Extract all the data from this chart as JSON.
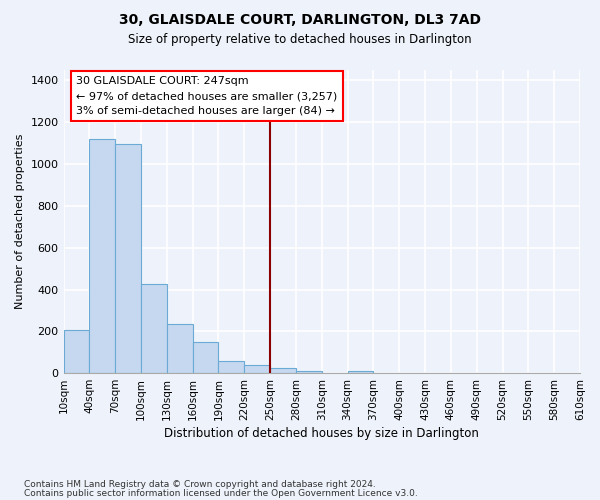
{
  "title": "30, GLAISDALE COURT, DARLINGTON, DL3 7AD",
  "subtitle": "Size of property relative to detached houses in Darlington",
  "xlabel": "Distribution of detached houses by size in Darlington",
  "ylabel": "Number of detached properties",
  "bar_color": "#c5d8f0",
  "bar_edge_color": "#6aaad4",
  "background_color": "#eef2fa",
  "categories": [
    "10sqm",
    "40sqm",
    "70sqm",
    "100sqm",
    "130sqm",
    "160sqm",
    "190sqm",
    "220sqm",
    "250sqm",
    "280sqm",
    "310sqm",
    "340sqm",
    "370sqm",
    "400sqm",
    "430sqm",
    "460sqm",
    "490sqm",
    "520sqm",
    "550sqm",
    "580sqm",
    "610sqm"
  ],
  "bar_heights": [
    205,
    1120,
    1095,
    425,
    235,
    148,
    60,
    40,
    25,
    10,
    0,
    10,
    0,
    0,
    0,
    0,
    0,
    0,
    0,
    0
  ],
  "ylim": [
    0,
    1450
  ],
  "yticks": [
    0,
    200,
    400,
    600,
    800,
    1000,
    1200,
    1400
  ],
  "annotation_title": "30 GLAISDALE COURT: 247sqm",
  "annotation_line1": "← 97% of detached houses are smaller (3,257)",
  "annotation_line2": "3% of semi-detached houses are larger (84) →",
  "footnote1": "Contains HM Land Registry data © Crown copyright and database right 2024.",
  "footnote2": "Contains public sector information licensed under the Open Government Licence v3.0."
}
